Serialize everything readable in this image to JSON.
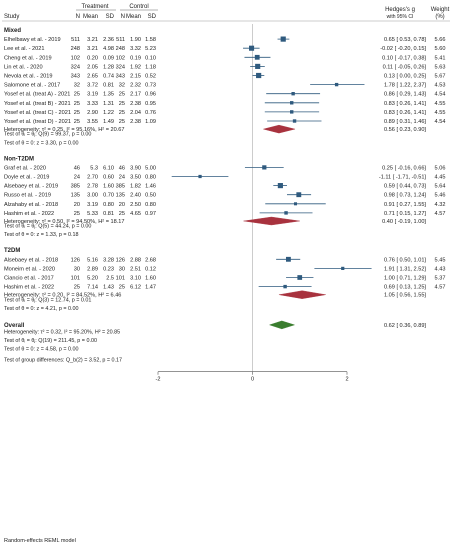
{
  "header": {
    "study": "Study",
    "treatment": "Treatment",
    "control": "Control",
    "n": "N",
    "mean": "Mean",
    "sd": "SD",
    "effect_line1": "Hedges's g",
    "effect_line2": "with 95% CI",
    "weight_line1": "Weight",
    "weight_line2": "(%)"
  },
  "footer": {
    "model": "Random-effects REML model",
    "group_test": "Test of group differences: Q_b(2) = 3.52, p = 0.17"
  },
  "colors": {
    "study_marker": "#2f5a7e",
    "ci_line": "#2f5a7e",
    "subgroup_diamond": "#a8323e",
    "overall_diamond": "#3a7d2e",
    "zero_line": "#999999"
  },
  "chart_data": {
    "type": "forest",
    "x_axis": {
      "min": -2,
      "max": 2,
      "ticks": [
        -2,
        0,
        2
      ]
    },
    "groups": [
      {
        "name": "Mixed",
        "studies": [
          {
            "study": "Elhelbawy et al. - 2019",
            "tn": "511",
            "tmean": "3.21",
            "tsd": "2.36",
            "cn": "511",
            "cmean": "1.90",
            "csd": "1.58",
            "g": 0.65,
            "lo": 0.53,
            "hi": 0.78,
            "ci_text": "0.65 [  0.53,  0.78]",
            "weight": "5.66"
          },
          {
            "study": "Lee et al. - 2021",
            "tn": "248",
            "tmean": "3.21",
            "tsd": "4.98",
            "cn": "248",
            "cmean": "3.32",
            "csd": "5.23",
            "g": -0.02,
            "lo": -0.2,
            "hi": 0.15,
            "ci_text": "-0.02 [ -0.20,  0.15]",
            "weight": "5.60"
          },
          {
            "study": "Cheng et al. - 2019",
            "tn": "102",
            "tmean": "0.20",
            "tsd": "0.09",
            "cn": "102",
            "cmean": "0.19",
            "csd": "0.10",
            "g": 0.1,
            "lo": -0.17,
            "hi": 0.38,
            "ci_text": "0.10 [ -0.17,  0.38]",
            "weight": "5.41"
          },
          {
            "study": "Lin et al. - 2020",
            "tn": "324",
            "tmean": "2.05",
            "tsd": "1.28",
            "cn": "324",
            "cmean": "1.92",
            "csd": "1.18",
            "g": 0.11,
            "lo": -0.05,
            "hi": 0.26,
            "ci_text": "0.11 [ -0.05,  0.26]",
            "weight": "5.63"
          },
          {
            "study": "Nevola et al. - 2019",
            "tn": "343",
            "tmean": "2.65",
            "tsd": "0.74",
            "cn": "343",
            "cmean": "2.15",
            "csd": "0.52",
            "g": 0.13,
            "lo": 0.0,
            "hi": 0.25,
            "ci_text": "0.13 [  0.00,  0.25]",
            "weight": "5.67"
          },
          {
            "study": "Salomone et al. - 2017",
            "tn": "32",
            "tmean": "3.72",
            "tsd": "0.81",
            "cn": "32",
            "cmean": "2.32",
            "csd": "0.73",
            "g": 1.78,
            "lo": 1.22,
            "hi": 2.37,
            "ci_text": "1.78 [  1.22,  2.37]",
            "weight": "4.53"
          },
          {
            "study": "Yosef et al. (treat A) - 2021",
            "tn": "25",
            "tmean": "3.19",
            "tsd": "1.35",
            "cn": "25",
            "cmean": "2.17",
            "csd": "0.96",
            "g": 0.86,
            "lo": 0.29,
            "hi": 1.43,
            "ci_text": "0.86 [  0.29,  1.43]",
            "weight": "4.54"
          },
          {
            "study": "Yosef et al. (treat B) - 2021",
            "tn": "25",
            "tmean": "3.33",
            "tsd": "1.31",
            "cn": "25",
            "cmean": "2.38",
            "csd": "0.95",
            "g": 0.83,
            "lo": 0.26,
            "hi": 1.41,
            "ci_text": "0.83 [  0.26,  1.41]",
            "weight": "4.55"
          },
          {
            "study": "Yosef et al. (treat C) - 2021",
            "tn": "25",
            "tmean": "2.90",
            "tsd": "1.22",
            "cn": "25",
            "cmean": "2.04",
            "csd": "0.76",
            "g": 0.83,
            "lo": 0.26,
            "hi": 1.41,
            "ci_text": "0.83 [  0.26,  1.41]",
            "weight": "4.55"
          },
          {
            "study": "Yosef et al. (treat D) - 2021",
            "tn": "25",
            "tmean": "3.55",
            "tsd": "1.49",
            "cn": "25",
            "cmean": "2.38",
            "csd": "1.09",
            "g": 0.89,
            "lo": 0.31,
            "hi": 1.46,
            "ci_text": "0.89 [  0.31,  1.46]",
            "weight": "4.54"
          }
        ],
        "pooled": {
          "g": 0.56,
          "lo": 0.23,
          "hi": 0.9,
          "ci_text": "0.56 [  0.23,  0.90]"
        },
        "stats": [
          "Heterogeneity: τ² = 0.25, I² = 95.16%, H² = 20.67",
          "Test of θᵢ = θⱼ: Q(9) = 99.37, p = 0.00",
          "Test of θ = 0: z = 3.30, p = 0.00"
        ]
      },
      {
        "name": "Non-T2DM",
        "studies": [
          {
            "study": "Graf et al. - 2020",
            "tn": "46",
            "tmean": "5.3",
            "tsd": "6.10",
            "cn": "46",
            "cmean": "3.90",
            "csd": "5.00",
            "g": 0.25,
            "lo": -0.16,
            "hi": 0.66,
            "ci_text": "0.25 [ -0.16,  0.66]",
            "weight": "5.06"
          },
          {
            "study": "Doyle et al. - 2019",
            "tn": "24",
            "tmean": "2.70",
            "tsd": "0.60",
            "cn": "24",
            "cmean": "3.50",
            "csd": "0.80",
            "g": -1.11,
            "lo": -1.71,
            "hi": -0.51,
            "ci_text": "-1.11 [ -1.71, -0.51]",
            "weight": "4.45"
          },
          {
            "study": "Alsebaey et al. - 2019",
            "tn": "385",
            "tmean": "2.78",
            "tsd": "1.60",
            "cn": "385",
            "cmean": "1.82",
            "csd": "1.46",
            "g": 0.59,
            "lo": 0.44,
            "hi": 0.73,
            "ci_text": "0.59 [  0.44,  0.73]",
            "weight": "5.64"
          },
          {
            "study": "Russo et al. - 2019",
            "tn": "135",
            "tmean": "3.00",
            "tsd": "0.70",
            "cn": "135",
            "cmean": "2.40",
            "csd": "0.50",
            "g": 0.98,
            "lo": 0.73,
            "hi": 1.24,
            "ci_text": "0.98 [  0.73,  1.24]",
            "weight": "5.46"
          },
          {
            "study": "Alzahaby et al. - 2018",
            "tn": "20",
            "tmean": "3.19",
            "tsd": "0.80",
            "cn": "20",
            "cmean": "2.50",
            "csd": "0.80",
            "g": 0.91,
            "lo": 0.27,
            "hi": 1.55,
            "ci_text": "0.91 [  0.27,  1.55]",
            "weight": "4.32"
          },
          {
            "study": "Hashim et al. - 2022",
            "tn": "25",
            "tmean": "5.33",
            "tsd": "0.81",
            "cn": "25",
            "cmean": "4.65",
            "csd": "0.97",
            "g": 0.71,
            "lo": 0.15,
            "hi": 1.27,
            "ci_text": "0.71 [  0.15,  1.27]",
            "weight": "4.57"
          }
        ],
        "pooled": {
          "g": 0.4,
          "lo": -0.19,
          "hi": 1.0,
          "ci_text": "0.40 [ -0.19,  1.00]"
        },
        "stats": [
          "Heterogeneity: τ² = 0.50, I² = 94.50%, H² = 18.17",
          "Test of θᵢ = θⱼ: Q(5) = 44.24, p = 0.00",
          "Test of θ = 0: z = 1.33, p = 0.18"
        ]
      },
      {
        "name": "T2DM",
        "studies": [
          {
            "study": "Alsebaey et al. - 2018",
            "tn": "126",
            "tmean": "5.16",
            "tsd": "3.28",
            "cn": "126",
            "cmean": "2.88",
            "csd": "2.68",
            "g": 0.76,
            "lo": 0.5,
            "hi": 1.01,
            "ci_text": "0.76 [  0.50,  1.01]",
            "weight": "5.45"
          },
          {
            "study": "Moneim et al. - 2020",
            "tn": "30",
            "tmean": "2.89",
            "tsd": "0.23",
            "cn": "30",
            "cmean": "2.51",
            "csd": "0.12",
            "g": 1.91,
            "lo": 1.31,
            "hi": 2.52,
            "ci_text": "1.91 [  1.31,  2.52]",
            "weight": "4.43"
          },
          {
            "study": "Ciancio et al. - 2017",
            "tn": "101",
            "tmean": "5.20",
            "tsd": "2.5",
            "cn": "101",
            "cmean": "3.10",
            "csd": "1.60",
            "g": 1.0,
            "lo": 0.71,
            "hi": 1.29,
            "ci_text": "1.00 [  0.71,  1.29]",
            "weight": "5.37"
          },
          {
            "study": "Hashim et al. - 2022",
            "tn": "25",
            "tmean": "7.14",
            "tsd": "1.43",
            "cn": "25",
            "cmean": "6.12",
            "csd": "1.47",
            "g": 0.69,
            "lo": 0.13,
            "hi": 1.25,
            "ci_text": "0.69 [  0.13,  1.25]",
            "weight": "4.57"
          }
        ],
        "pooled": {
          "g": 1.05,
          "lo": 0.56,
          "hi": 1.55,
          "ci_text": "1.05 [  0.56,  1.55]"
        },
        "stats": [
          "Heterogeneity: τ² = 0.20, I² = 84.52%, H² = 6.46",
          "Test of θᵢ = θⱼ: Q(3) = 12.74, p = 0.01",
          "Test of θ = 0: z = 4.21, p = 0.00"
        ]
      }
    ],
    "overall": {
      "name": "Overall",
      "g": 0.62,
      "lo": 0.36,
      "hi": 0.89,
      "ci_text": "0.62 [  0.36,  0.89]",
      "stats": [
        "Heterogeneity: τ² = 0.32, I² = 95.20%, H² = 20.85",
        "Test of θᵢ = θⱼ: Q(19) = 211.45, p = 0.00",
        "Test of θ = 0: z = 4.58, p = 0.00"
      ]
    }
  }
}
